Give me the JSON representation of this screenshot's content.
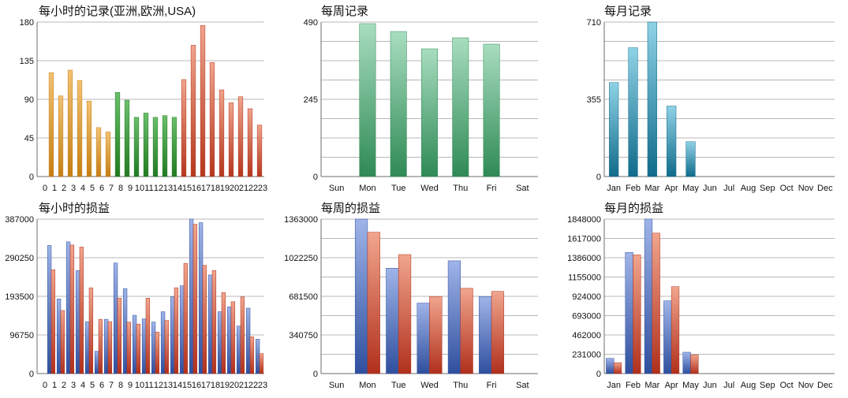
{
  "colors": {
    "grid": "#b8b8b8",
    "axis": "#6e6e6e",
    "text": "#111111",
    "hour_asia": [
      "#f2c273",
      "#c57f12"
    ],
    "hour_europe": [
      "#6cc06c",
      "#217a21"
    ],
    "hour_usa": [
      "#f0a48c",
      "#b5361d"
    ],
    "weekly_bar": [
      "#a8ddc0",
      "#2f8a55"
    ],
    "monthly_bar": [
      "#8fd2e6",
      "#106b8a"
    ],
    "profit": [
      "#9fb4e8",
      "#2f4f9e"
    ],
    "loss": [
      "#f1a58d",
      "#b0301c"
    ]
  },
  "chart_data": [
    {
      "id": "hourly-records",
      "type": "bar",
      "title": "每小时的记录(亚洲,欧洲,USA)",
      "categories": [
        "0",
        "1",
        "2",
        "3",
        "4",
        "5",
        "6",
        "7",
        "8",
        "9",
        "10",
        "11",
        "12",
        "13",
        "14",
        "15",
        "16",
        "17",
        "18",
        "19",
        "20",
        "21",
        "22",
        "23"
      ],
      "values": [
        0,
        121,
        94,
        124,
        112,
        88,
        57,
        52,
        98,
        89,
        69,
        74,
        69,
        71,
        69,
        113,
        153,
        176,
        133,
        101,
        86,
        93,
        79,
        60
      ],
      "group_colors": [
        "hour_asia",
        "hour_asia",
        "hour_asia",
        "hour_asia",
        "hour_asia",
        "hour_asia",
        "hour_asia",
        "hour_asia",
        "hour_europe",
        "hour_europe",
        "hour_europe",
        "hour_europe",
        "hour_europe",
        "hour_europe",
        "hour_europe",
        "hour_usa",
        "hour_usa",
        "hour_usa",
        "hour_usa",
        "hour_usa",
        "hour_usa",
        "hour_usa",
        "hour_usa",
        "hour_usa"
      ],
      "ylim": [
        0,
        180
      ],
      "yticks": [
        0,
        45,
        90,
        135,
        180
      ],
      "grid": true,
      "xlabel": "",
      "ylabel": ""
    },
    {
      "id": "weekly-records",
      "type": "bar",
      "title": "每周记录",
      "categories": [
        "Sun",
        "Mon",
        "Tue",
        "Wed",
        "Thu",
        "Fri",
        "Sat"
      ],
      "values": [
        0,
        485,
        460,
        405,
        440,
        420,
        0
      ],
      "ylim": [
        0,
        490
      ],
      "yticks": [
        0,
        245,
        490
      ],
      "grid": true,
      "xlabel": "",
      "ylabel": ""
    },
    {
      "id": "monthly-records",
      "type": "bar",
      "title": "每月记录",
      "categories": [
        "Jan",
        "Feb",
        "Mar",
        "Apr",
        "May",
        "Jun",
        "Jul",
        "Aug",
        "Sep",
        "Oct",
        "Nov",
        "Dec"
      ],
      "values": [
        432,
        592,
        710,
        324,
        160,
        0,
        0,
        0,
        0,
        0,
        0,
        0
      ],
      "ylim": [
        0,
        710
      ],
      "yticks": [
        0,
        355,
        710
      ],
      "grid": true,
      "xlabel": "",
      "ylabel": ""
    },
    {
      "id": "hourly-pnl",
      "type": "bar",
      "title": "每小时的损益",
      "categories": [
        "0",
        "1",
        "2",
        "3",
        "4",
        "5",
        "6",
        "7",
        "8",
        "9",
        "10",
        "11",
        "12",
        "13",
        "14",
        "15",
        "16",
        "17",
        "18",
        "19",
        "20",
        "21",
        "22",
        "23"
      ],
      "series": [
        {
          "values": [
            0,
            321000,
            187000,
            330000,
            258000,
            130000,
            56000,
            136000,
            277000,
            213000,
            146000,
            137000,
            129000,
            155000,
            192000,
            220000,
            387000,
            378000,
            247000,
            155000,
            167000,
            119000,
            164000,
            86000
          ]
        },
        {
          "values": [
            0,
            260000,
            158000,
            322000,
            317000,
            215000,
            136000,
            130000,
            189000,
            129000,
            124000,
            189000,
            104000,
            133000,
            215000,
            276000,
            374000,
            271000,
            258000,
            203000,
            180000,
            192000,
            92000,
            50000
          ]
        }
      ],
      "ylim": [
        0,
        387000
      ],
      "yticks": [
        0,
        96750,
        193500,
        290250,
        387000
      ],
      "grid": true,
      "xlabel": "",
      "ylabel": ""
    },
    {
      "id": "weekly-pnl",
      "type": "bar",
      "title": "每周的损益",
      "categories": [
        "Sun",
        "Mon",
        "Tue",
        "Wed",
        "Thu",
        "Fri",
        "Sat"
      ],
      "series": [
        {
          "values": [
            0,
            1363000,
            930000,
            622000,
            995000,
            680000,
            0
          ]
        },
        {
          "values": [
            0,
            1247000,
            1050000,
            680000,
            752000,
            725000,
            0
          ]
        }
      ],
      "ylim": [
        0,
        1363000
      ],
      "yticks": [
        0,
        340750,
        681500,
        1022250,
        1363000
      ],
      "grid": true,
      "xlabel": "",
      "ylabel": ""
    },
    {
      "id": "monthly-pnl",
      "type": "bar",
      "title": "每月的损益",
      "categories": [
        "Jan",
        "Feb",
        "Mar",
        "Apr",
        "May",
        "Jun",
        "Jul",
        "Aug",
        "Sep",
        "Oct",
        "Nov",
        "Dec"
      ],
      "series": [
        {
          "values": [
            182000,
            1450000,
            1848000,
            870000,
            255000,
            0,
            0,
            0,
            0,
            0,
            0,
            0
          ]
        },
        {
          "values": [
            130000,
            1420000,
            1680000,
            1040000,
            225000,
            0,
            0,
            0,
            0,
            0,
            0,
            0
          ]
        }
      ],
      "ylim": [
        0,
        1848000
      ],
      "yticks": [
        0,
        231000,
        462000,
        693000,
        924000,
        1155000,
        1386000,
        1617000,
        1848000
      ],
      "grid": true,
      "xlabel": "",
      "ylabel": ""
    }
  ]
}
